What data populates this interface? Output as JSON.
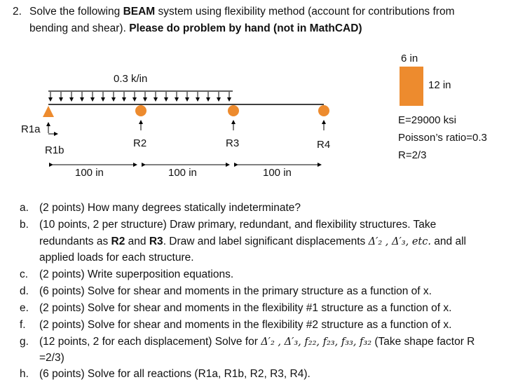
{
  "question": {
    "number": "2.",
    "line1_pre": "Solve the following ",
    "line1_bold": "BEAM",
    "line1_post": " system using flexibility method (account for contributions from",
    "line2_pre": "bending and shear). ",
    "line2_bold": "Please do problem by hand (not in MathCAD)"
  },
  "figure": {
    "load": "0.3 k/in",
    "supports": [
      "R1a",
      "R1b",
      "R2",
      "R3",
      "R4"
    ],
    "spans": [
      "100 in",
      "100 in",
      "100 in"
    ],
    "section_width": "6 in",
    "section_height": "12 in",
    "props": [
      "E=29000 ksi",
      "Poisson’s ratio=0.3",
      "R=2/3"
    ],
    "colors": {
      "support": "#ED8B2E",
      "section": "#ED8B2E",
      "beam": "#000000"
    }
  },
  "items": {
    "a": {
      "label": "a.",
      "text": "(2 points) How many degrees statically indeterminate?"
    },
    "b": {
      "label": "b.",
      "line1": "(10 points, 2 per structure) Draw primary, redundant, and flexibility structures. Take",
      "line2_a": "redundants as ",
      "line2_r2": "R2",
      "line2_b": " and ",
      "line2_r3": "R3",
      "line2_c": ". Draw and label significant displacements ",
      "line2_math": "Δ′₂ , Δ′₃, etc.",
      "line2_d": " and all",
      "line3": "applied loads for each structure."
    },
    "c": {
      "label": "c.",
      "text": "(2 points) Write superposition equations."
    },
    "d": {
      "label": "d.",
      "text": "(6 points) Solve for shear and moments in the primary structure as a function of x."
    },
    "e": {
      "label": "e.",
      "text": "(2 points) Solve for shear and moments in the flexibility #1 structure as a function of x."
    },
    "f": {
      "label": "f.",
      "text": "(2 points) Solve for shear and moments in the flexibility #2 structure as a function of x."
    },
    "g": {
      "label": "g.",
      "line1_pre": "(12 points, 2 for each displacement) Solve for ",
      "line1_math": "Δ′₂ , Δ′₃, f₂₂, f₂₃, f₃₃, f₃₂",
      "line1_post": " (Take shape factor R",
      "line2": "=2/3)"
    },
    "h": {
      "label": "h.",
      "text": "(6 points) Solve for all reactions (R1a, R1b, R2, R3, R4)."
    }
  }
}
